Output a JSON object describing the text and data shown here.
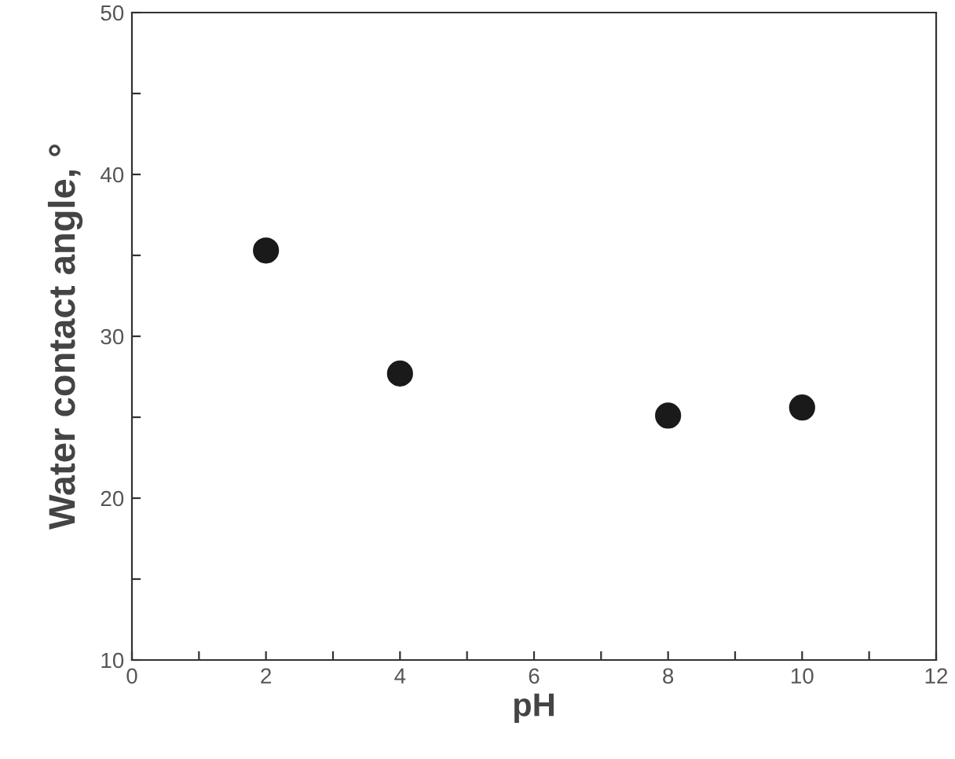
{
  "chart_data": {
    "type": "scatter",
    "xlabel": "pH",
    "ylabel": "Water contact angle, °",
    "x": [
      2,
      4,
      8,
      10
    ],
    "series": [
      {
        "color": "#1a1a1a",
        "values": [
          35.3,
          27.7,
          25.1,
          25.6
        ]
      }
    ],
    "marker": "circle",
    "grid": false,
    "legend": false,
    "xlim": [
      0,
      12
    ],
    "ylim": [
      10,
      50
    ],
    "xticks": [
      0,
      {
        "value": 1,
        "label": null
      },
      2,
      {
        "value": 3,
        "label": null
      },
      4,
      {
        "value": 5,
        "label": null
      },
      6,
      {
        "value": 7,
        "label": null
      },
      8,
      {
        "value": 9,
        "label": null
      },
      10,
      {
        "value": 11,
        "label": null
      },
      12
    ],
    "yticks": [
      10,
      {
        "value": 15,
        "label": null
      },
      20,
      {
        "value": 25,
        "label": null
      },
      30,
      {
        "value": 35,
        "label": null
      },
      40,
      {
        "value": 45,
        "label": null
      },
      50
    ]
  }
}
